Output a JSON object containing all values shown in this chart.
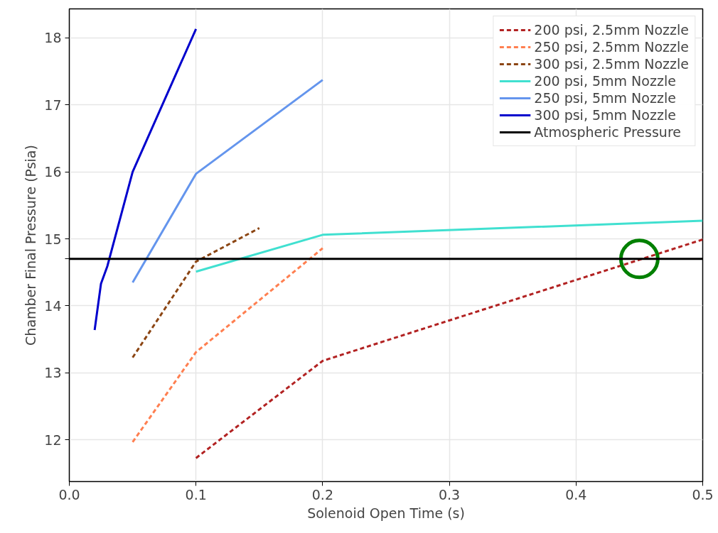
{
  "chart_data": {
    "type": "line",
    "xlabel": "Solenoid Open Time (s)",
    "ylabel": "Chamber Final Pressure (Psia)",
    "xlim": [
      0,
      0.5
    ],
    "ylim": [
      11.38,
      18.43
    ],
    "xticks": [
      {
        "value": 0,
        "label": "0.0"
      },
      0.1,
      0.2,
      0.3,
      0.4,
      0.5
    ],
    "yticks": [
      12,
      13,
      14,
      {
        "value": 14.7,
        "label": null
      },
      15,
      16,
      17,
      18
    ],
    "grid": true,
    "legend": "top right",
    "series": [
      {
        "name": "200 psi, 2.5mm Nozzle",
        "color": "#b22222",
        "line_style": "dashed",
        "x": [
          0.1,
          0.2,
          0.5
        ],
        "values": [
          11.73,
          13.18,
          14.99
        ]
      },
      {
        "name": "250 psi, 2.5mm Nozzle",
        "color": "#ff7f50",
        "line_style": "dashed",
        "x": [
          0.05,
          0.1,
          0.2
        ],
        "values": [
          11.97,
          13.31,
          14.86
        ]
      },
      {
        "name": "300 psi, 2.5mm Nozzle",
        "color": "#8b4513",
        "line_style": "dashed",
        "x": [
          0.05,
          0.1,
          0.15
        ],
        "values": [
          13.23,
          14.66,
          15.16
        ]
      },
      {
        "name": "200 psi, 5mm Nozzle",
        "color": "#40e0d0",
        "line_style": "solid",
        "x": [
          0.1,
          0.2,
          0.5
        ],
        "values": [
          14.51,
          15.06,
          15.27
        ]
      },
      {
        "name": "250 psi, 5mm Nozzle",
        "color": "#6495ed",
        "line_style": "solid",
        "x": [
          0.05,
          0.1,
          0.2
        ],
        "values": [
          14.35,
          15.97,
          17.37
        ]
      },
      {
        "name": "300 psi, 5mm Nozzle",
        "color": "#0000cd",
        "line_style": "solid",
        "x": [
          0.02,
          0.025,
          0.03,
          0.05,
          0.1
        ],
        "values": [
          13.64,
          14.33,
          14.59,
          16.0,
          18.13
        ]
      },
      {
        "type": "scatter",
        "marker": "circle",
        "color": "#008000",
        "x": [
          0.45
        ],
        "values": [
          14.7
        ]
      }
    ],
    "ref_lines": [
      {
        "axis": "y",
        "value": 14.7,
        "label": "Atmospheric Pressure",
        "color": "#000000"
      }
    ]
  }
}
